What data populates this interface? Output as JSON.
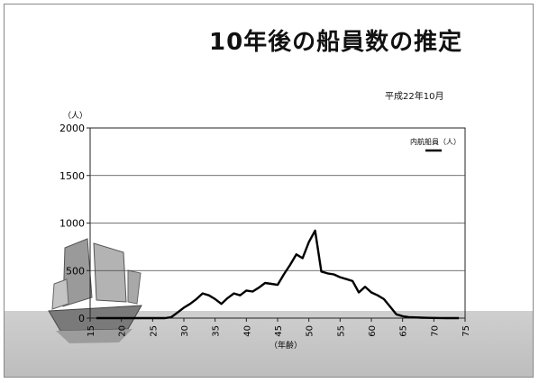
{
  "page": {
    "title": "10年後の船員数の推定",
    "date": "平成22年10月"
  },
  "chart_data": {
    "type": "line",
    "title": "10年後の船員数の推定",
    "ylabel": "（人）",
    "xlabel": "（年齢）",
    "ylim": [
      0,
      2000
    ],
    "xlim": [
      15,
      75
    ],
    "yticks": [
      0,
      500,
      1000,
      1500,
      2000
    ],
    "xticks": [
      15,
      20,
      25,
      30,
      35,
      40,
      45,
      50,
      55,
      60,
      65,
      70,
      75
    ],
    "grid": true,
    "legend_position": "top-right",
    "series": [
      {
        "name": "内航船員（人）",
        "color": "#000000",
        "x": [
          16,
          17,
          18,
          19,
          20,
          21,
          22,
          23,
          24,
          25,
          26,
          27,
          28,
          29,
          30,
          31,
          32,
          33,
          34,
          35,
          36,
          37,
          38,
          39,
          40,
          41,
          42,
          43,
          44,
          45,
          46,
          47,
          48,
          49,
          50,
          51,
          52,
          53,
          54,
          55,
          56,
          57,
          58,
          59,
          60,
          61,
          62,
          63,
          64,
          65,
          66,
          67,
          68,
          69,
          70,
          71,
          72,
          73,
          74
        ],
        "values": [
          0,
          0,
          0,
          0,
          0,
          0,
          0,
          0,
          0,
          0,
          0,
          0,
          10,
          60,
          110,
          150,
          200,
          260,
          240,
          200,
          150,
          210,
          260,
          240,
          290,
          280,
          320,
          370,
          360,
          350,
          460,
          560,
          670,
          630,
          800,
          920,
          490,
          470,
          460,
          430,
          410,
          390,
          270,
          330,
          270,
          240,
          200,
          120,
          40,
          20,
          10,
          8,
          5,
          3,
          2,
          1,
          0,
          0,
          0
        ]
      }
    ]
  }
}
